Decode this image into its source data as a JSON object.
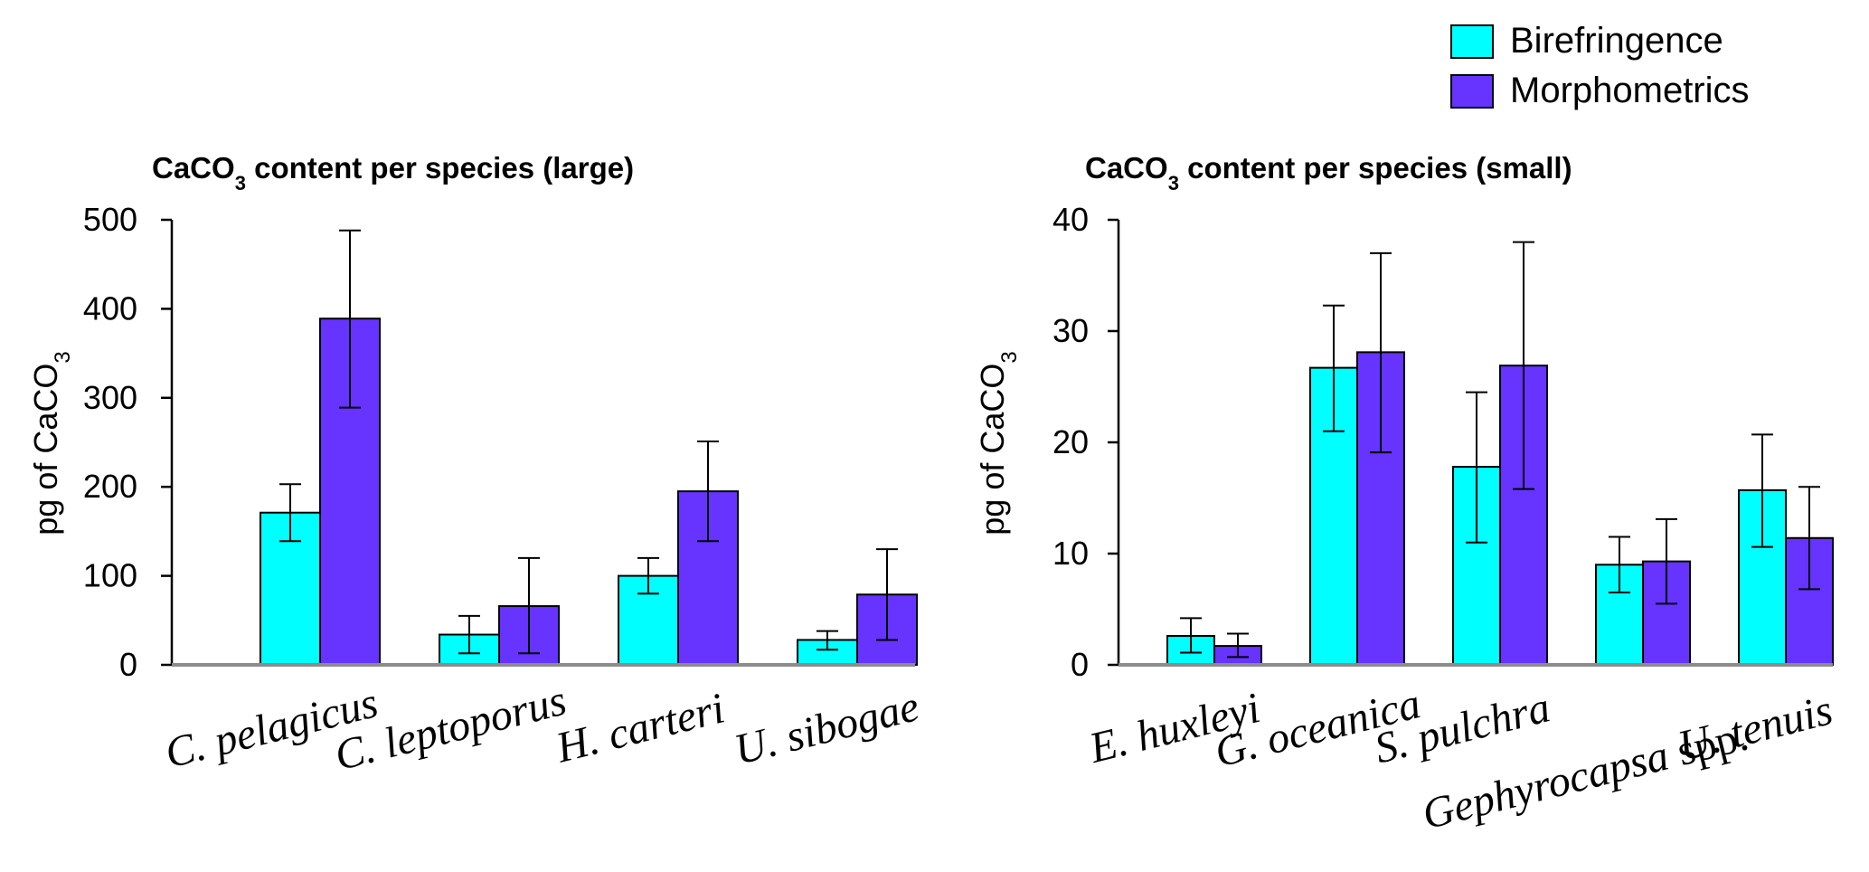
{
  "legend": {
    "placement": "top-right",
    "entries": [
      {
        "name": "Birefringence",
        "color": "#00ffff"
      },
      {
        "name": "Morphometrics",
        "color": "#6633ff"
      }
    ]
  },
  "chart_data": [
    {
      "type": "bar",
      "title_main": "CaCO",
      "title_sub": "3",
      "title_rest": " content per species (large)",
      "ylabel_main": "pg of CaCO",
      "ylabel_sub": "3",
      "ylim": [
        0,
        500
      ],
      "yticks": [
        "0",
        "100",
        "200",
        "300",
        "400",
        "500"
      ],
      "grid": false,
      "categories": [
        {
          "label": "C. pelagicus",
          "italic_suffix": ""
        },
        {
          "label": "C. leptoporus",
          "italic_suffix": ""
        },
        {
          "label": "H. carteri",
          "italic_suffix": ""
        },
        {
          "label": "U. sibogae",
          "italic_suffix": ""
        }
      ],
      "series": [
        {
          "name": "Birefringence",
          "values": [
            171,
            34,
            100,
            28
          ],
          "err_low": [
            139,
            13,
            80,
            17
          ],
          "err_high": [
            203,
            55,
            120,
            38
          ]
        },
        {
          "name": "Morphometrics",
          "values": [
            389,
            66,
            195,
            79
          ],
          "err_low": [
            289,
            13,
            139,
            28
          ],
          "err_high": [
            488,
            120,
            251,
            130
          ]
        }
      ]
    },
    {
      "type": "bar",
      "title_main": "CaCO",
      "title_sub": "3",
      "title_rest": " content per species (small)",
      "ylabel_main": "pg of CaCO",
      "ylabel_sub": "3",
      "ylim": [
        0,
        40
      ],
      "yticks": [
        "0",
        "10",
        "20",
        "30",
        "40"
      ],
      "grid": false,
      "categories": [
        {
          "label": "E. huxleyi",
          "italic_suffix": ""
        },
        {
          "label": "G. oceanica",
          "italic_suffix": ""
        },
        {
          "label": "S. pulchra",
          "italic_suffix": ""
        },
        {
          "label": "Gephyrocapsa",
          "italic_suffix": " spp."
        },
        {
          "label": "U. tenuis",
          "italic_suffix": ""
        }
      ],
      "series": [
        {
          "name": "Birefringence",
          "values": [
            2.6,
            26.7,
            17.8,
            9.0,
            15.7
          ],
          "err_low": [
            1.1,
            21.0,
            11.0,
            6.5,
            10.6
          ],
          "err_high": [
            4.2,
            32.3,
            24.5,
            11.5,
            20.7
          ]
        },
        {
          "name": "Morphometrics",
          "values": [
            1.7,
            28.1,
            26.9,
            9.3,
            11.4
          ],
          "err_low": [
            0.7,
            19.1,
            15.8,
            5.5,
            6.8
          ],
          "err_high": [
            2.8,
            37.0,
            38.0,
            13.1,
            16.0
          ]
        }
      ]
    }
  ]
}
